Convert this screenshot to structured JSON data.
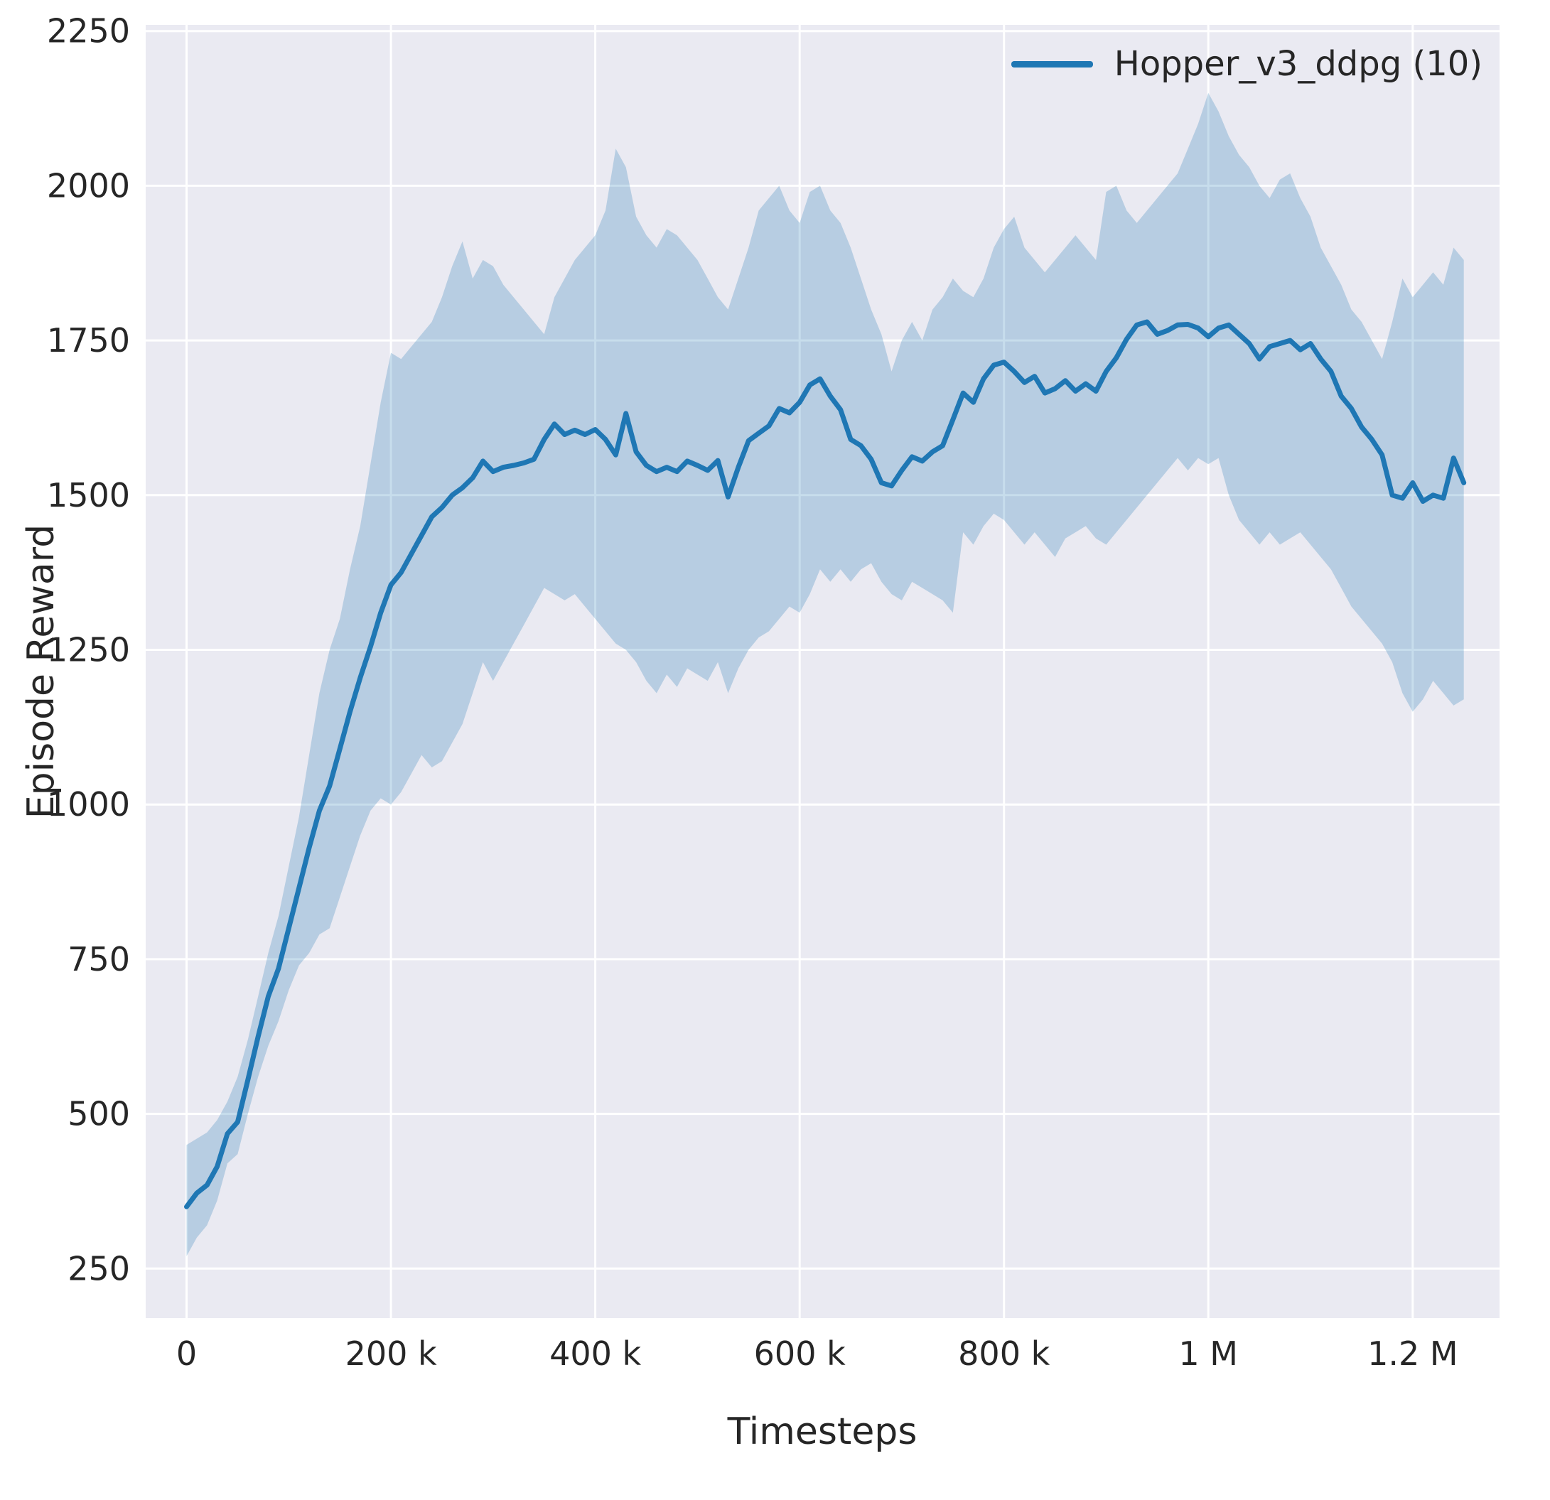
{
  "colors": {
    "figure_bg": "#ffffff",
    "axes_bg": "#eaeaf2",
    "grid": "#ffffff",
    "text": "#262626",
    "line": "#1f77b4"
  },
  "chart_data": {
    "type": "line",
    "title": "",
    "xlabel": "Timesteps",
    "ylabel": "Episode Reward",
    "grid": true,
    "legend_position": "upper right",
    "xlim": [
      -40000,
      1285000
    ],
    "ylim": [
      170,
      2260
    ],
    "xticks": {
      "values": [
        0,
        200000,
        400000,
        600000,
        800000,
        1000000,
        1200000
      ],
      "labels": [
        "0",
        "200 k",
        "400 k",
        "600 k",
        "800 k",
        "1 M",
        "1.2 M"
      ]
    },
    "yticks": {
      "values": [
        250,
        500,
        750,
        1000,
        1250,
        1500,
        1750,
        2000,
        2250
      ],
      "labels": [
        "250",
        "500",
        "750",
        "1000",
        "1250",
        "1500",
        "1750",
        "2000",
        "2250"
      ]
    },
    "series": [
      {
        "name": "Hopper_v3_ddpg (10)",
        "color": "#1f77b4",
        "line_width": 7,
        "band_opacity": 0.25,
        "x": [
          0,
          10000,
          20000,
          30000,
          40000,
          50000,
          60000,
          70000,
          80000,
          90000,
          100000,
          110000,
          120000,
          130000,
          140000,
          150000,
          160000,
          170000,
          180000,
          190000,
          200000,
          210000,
          220000,
          230000,
          240000,
          250000,
          260000,
          270000,
          280000,
          290000,
          300000,
          310000,
          320000,
          330000,
          340000,
          350000,
          360000,
          370000,
          380000,
          390000,
          400000,
          410000,
          420000,
          430000,
          440000,
          450000,
          460000,
          470000,
          480000,
          490000,
          500000,
          510000,
          520000,
          530000,
          540000,
          550000,
          560000,
          570000,
          580000,
          590000,
          600000,
          610000,
          620000,
          630000,
          640000,
          650000,
          660000,
          670000,
          680000,
          690000,
          700000,
          710000,
          720000,
          730000,
          740000,
          750000,
          760000,
          770000,
          780000,
          790000,
          800000,
          810000,
          820000,
          830000,
          840000,
          850000,
          860000,
          870000,
          880000,
          890000,
          900000,
          910000,
          920000,
          930000,
          940000,
          950000,
          960000,
          970000,
          980000,
          990000,
          1000000,
          1010000,
          1020000,
          1030000,
          1040000,
          1050000,
          1060000,
          1070000,
          1080000,
          1090000,
          1100000,
          1110000,
          1120000,
          1130000,
          1140000,
          1150000,
          1160000,
          1170000,
          1180000,
          1190000,
          1200000,
          1210000,
          1220000,
          1230000,
          1240000,
          1250000
        ],
        "mean": [
          350,
          372,
          385,
          415,
          468,
          487,
          555,
          625,
          690,
          735,
          800,
          865,
          930,
          990,
          1030,
          1090,
          1150,
          1205,
          1255,
          1310,
          1355,
          1375,
          1405,
          1435,
          1465,
          1480,
          1500,
          1512,
          1528,
          1555,
          1538,
          1545,
          1548,
          1552,
          1558,
          1590,
          1615,
          1598,
          1605,
          1598,
          1606,
          1590,
          1565,
          1632,
          1570,
          1548,
          1538,
          1545,
          1538,
          1555,
          1548,
          1540,
          1556,
          1497,
          1545,
          1588,
          1600,
          1612,
          1640,
          1633,
          1650,
          1678,
          1688,
          1660,
          1638,
          1590,
          1580,
          1558,
          1520,
          1515,
          1540,
          1562,
          1555,
          1570,
          1580,
          1622,
          1665,
          1650,
          1688,
          1710,
          1715,
          1700,
          1682,
          1692,
          1665,
          1672,
          1685,
          1668,
          1680,
          1668,
          1700,
          1722,
          1752,
          1775,
          1780,
          1760,
          1766,
          1775,
          1776,
          1770,
          1756,
          1770,
          1775,
          1760,
          1745,
          1720,
          1740,
          1745,
          1750,
          1735,
          1745,
          1720,
          1700,
          1660,
          1640,
          1610,
          1590,
          1565,
          1500,
          1495,
          1520,
          1490,
          1500,
          1495,
          1560,
          1520
        ],
        "lower": [
          270,
          300,
          320,
          360,
          420,
          435,
          500,
          560,
          610,
          650,
          700,
          740,
          760,
          790,
          800,
          850,
          900,
          950,
          990,
          1010,
          1000,
          1020,
          1050,
          1080,
          1060,
          1070,
          1100,
          1130,
          1180,
          1230,
          1200,
          1230,
          1260,
          1290,
          1320,
          1350,
          1340,
          1330,
          1340,
          1320,
          1300,
          1280,
          1260,
          1250,
          1230,
          1200,
          1180,
          1210,
          1190,
          1220,
          1210,
          1200,
          1230,
          1180,
          1220,
          1250,
          1270,
          1280,
          1300,
          1320,
          1310,
          1340,
          1380,
          1360,
          1380,
          1360,
          1380,
          1390,
          1360,
          1340,
          1330,
          1360,
          1350,
          1340,
          1330,
          1310,
          1440,
          1420,
          1450,
          1470,
          1460,
          1440,
          1420,
          1440,
          1420,
          1400,
          1430,
          1440,
          1450,
          1430,
          1420,
          1440,
          1460,
          1480,
          1500,
          1520,
          1540,
          1560,
          1540,
          1560,
          1550,
          1560,
          1500,
          1460,
          1440,
          1420,
          1440,
          1420,
          1430,
          1440,
          1420,
          1400,
          1380,
          1350,
          1320,
          1300,
          1280,
          1260,
          1230,
          1180,
          1150,
          1170,
          1200,
          1180,
          1160,
          1170
        ],
        "upper": [
          450,
          460,
          470,
          490,
          520,
          560,
          620,
          690,
          760,
          820,
          900,
          980,
          1080,
          1180,
          1250,
          1300,
          1380,
          1450,
          1550,
          1650,
          1730,
          1720,
          1740,
          1760,
          1780,
          1820,
          1870,
          1910,
          1850,
          1880,
          1870,
          1840,
          1820,
          1800,
          1780,
          1760,
          1820,
          1850,
          1880,
          1900,
          1920,
          1960,
          2060,
          2030,
          1950,
          1920,
          1900,
          1930,
          1920,
          1900,
          1880,
          1850,
          1820,
          1800,
          1850,
          1900,
          1960,
          1980,
          2000,
          1960,
          1940,
          1990,
          2000,
          1960,
          1940,
          1900,
          1850,
          1800,
          1760,
          1700,
          1750,
          1780,
          1750,
          1800,
          1820,
          1850,
          1830,
          1820,
          1850,
          1900,
          1930,
          1950,
          1900,
          1880,
          1860,
          1880,
          1900,
          1920,
          1900,
          1880,
          1990,
          2000,
          1960,
          1940,
          1960,
          1980,
          2000,
          2020,
          2060,
          2100,
          2150,
          2120,
          2080,
          2050,
          2030,
          2000,
          1980,
          2010,
          2020,
          1980,
          1950,
          1900,
          1870,
          1840,
          1800,
          1780,
          1750,
          1720,
          1780,
          1850,
          1820,
          1840,
          1860,
          1840,
          1900,
          1880
        ]
      }
    ]
  }
}
